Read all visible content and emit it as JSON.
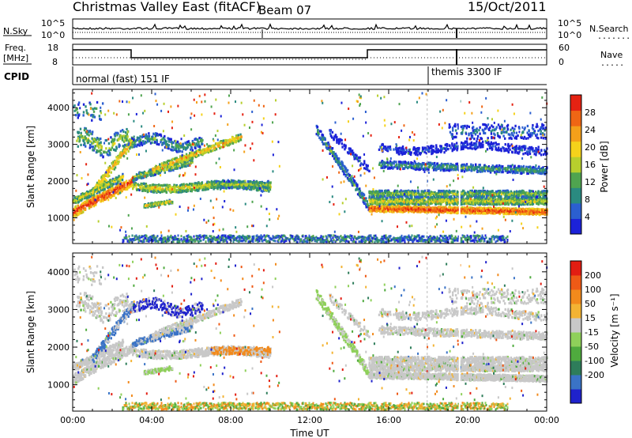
{
  "header": {
    "title": "Christmas Valley East (fitACF)",
    "beam": "Beam 07",
    "date": "15/Oct/2011"
  },
  "top_panels": {
    "nsky": {
      "left_label": "N.Sky",
      "left_ticks": [
        "10^5",
        "10^0"
      ],
      "right_ticks": [
        "10^5",
        "10^0"
      ],
      "right_label": "N.Search",
      "right_dotted": "........"
    },
    "freq": {
      "left_label_top": "Freq.",
      "left_label_bottom": "[MHz]",
      "left_ticks": [
        "18",
        "8"
      ],
      "right_ticks": [
        "60",
        "0"
      ],
      "right_label": "Nave",
      "right_dotted": "....."
    },
    "cpid": {
      "label": "CPID",
      "segments": [
        {
          "text": "normal (fast) 151 IF",
          "start_hour": 0
        },
        {
          "text": "themis 3300 IF",
          "start_hour": 18
        }
      ]
    }
  },
  "chart_data": [
    {
      "type": "heatmap",
      "panel": "power",
      "ylabel": "Slant Range [km]",
      "y_ticks": [
        1000,
        2000,
        3000,
        4000
      ],
      "ylim": [
        300,
        4500
      ],
      "x_ticks": [
        "00:00",
        "04:00",
        "08:00",
        "12:00",
        "16:00",
        "20:00",
        "00:00"
      ],
      "xlim_hours": [
        0,
        24
      ],
      "colorbar": {
        "label": "Power [dB]",
        "tick_labels": [
          "4",
          "8",
          "12",
          "16",
          "20",
          "24",
          "28"
        ],
        "colors": [
          "#1c22d8",
          "#2b5fd0",
          "#2a8a80",
          "#4fa44f",
          "#b7cf2d",
          "#f5d21b",
          "#f4a01a",
          "#ef6614",
          "#e52212"
        ]
      }
    },
    {
      "type": "heatmap",
      "panel": "velocity",
      "ylabel": "Slant Range [km]",
      "y_ticks": [
        1000,
        2000,
        3000,
        4000
      ],
      "ylim": [
        300,
        4500
      ],
      "x_ticks": [
        "00:00",
        "04:00",
        "08:00",
        "12:00",
        "16:00",
        "20:00",
        "00:00"
      ],
      "xlim_hours": [
        0,
        24
      ],
      "xlabel": "Time UT",
      "colorbar": {
        "label": "Velocity [m s⁻¹]",
        "tick_labels": [
          "200",
          "100",
          "50",
          "15",
          "-15",
          "-50",
          "-100",
          "-200"
        ],
        "colors": [
          "#1f22cc",
          "#3a73c6",
          "#2e7d5a",
          "#4faa3e",
          "#8fd05a",
          "#c8c8c8",
          "#f3b333",
          "#f28a1c",
          "#ee5a16",
          "#e21d12"
        ]
      }
    }
  ]
}
